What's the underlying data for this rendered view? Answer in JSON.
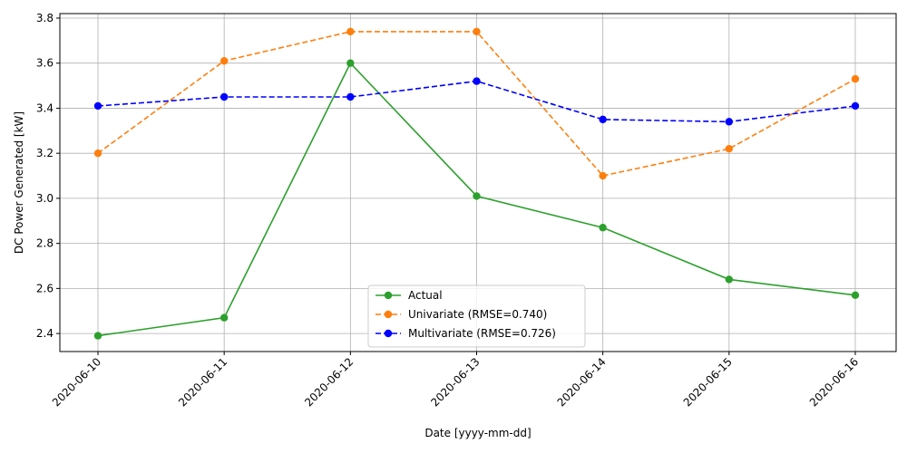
{
  "chart_data": {
    "type": "line",
    "title": "",
    "xlabel": "Date [yyyy-mm-dd]",
    "ylabel": "DC Power Generated [kW]",
    "categories": [
      "2020-06-10",
      "2020-06-11",
      "2020-06-12",
      "2020-06-13",
      "2020-06-14",
      "2020-06-15",
      "2020-06-16"
    ],
    "ylim": [
      2.32,
      3.82
    ],
    "yticks": [
      2.4,
      2.6,
      2.8,
      3.0,
      3.2,
      3.4,
      3.6,
      3.8
    ],
    "ytick_labels": [
      "2.4",
      "2.6",
      "2.8",
      "3.0",
      "3.2",
      "3.4",
      "3.6",
      "3.8"
    ],
    "grid": true,
    "legend_position": "bottom-center",
    "series": [
      {
        "name": "Actual",
        "color": "#2ca02c",
        "dashed": false,
        "values": [
          2.39,
          2.47,
          3.6,
          3.01,
          2.87,
          2.64,
          2.57
        ]
      },
      {
        "name": "Univariate (RMSE=0.740)",
        "color": "#ff7f0e",
        "dashed": true,
        "values": [
          3.2,
          3.61,
          3.74,
          3.74,
          3.1,
          3.22,
          3.53
        ]
      },
      {
        "name": "Multivariate (RMSE=0.726)",
        "color": "#0000ff",
        "dashed": true,
        "values": [
          3.41,
          3.45,
          3.45,
          3.52,
          3.35,
          3.34,
          3.41
        ]
      }
    ]
  }
}
